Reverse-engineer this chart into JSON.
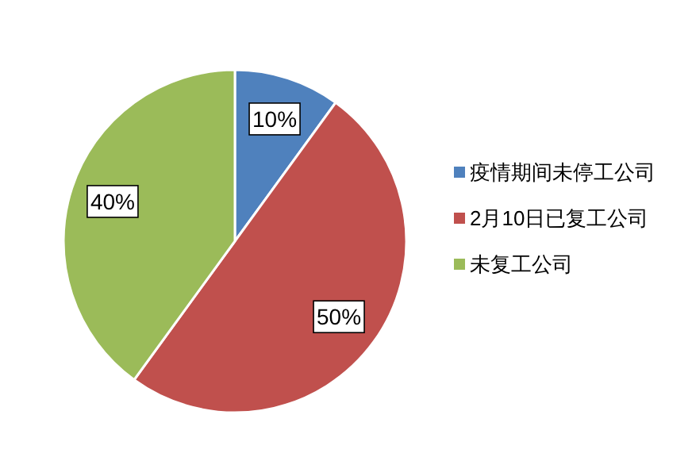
{
  "chart_data": {
    "type": "pie",
    "categories": [
      "疫情期间未停工公司",
      "2月10日已复工公司",
      "未复工公司"
    ],
    "values": [
      10,
      50,
      40
    ],
    "colors": [
      "#4f81bd",
      "#c0504d",
      "#9bbb59"
    ],
    "value_labels": [
      "10%",
      "50%",
      "40%"
    ],
    "legend": "right"
  }
}
